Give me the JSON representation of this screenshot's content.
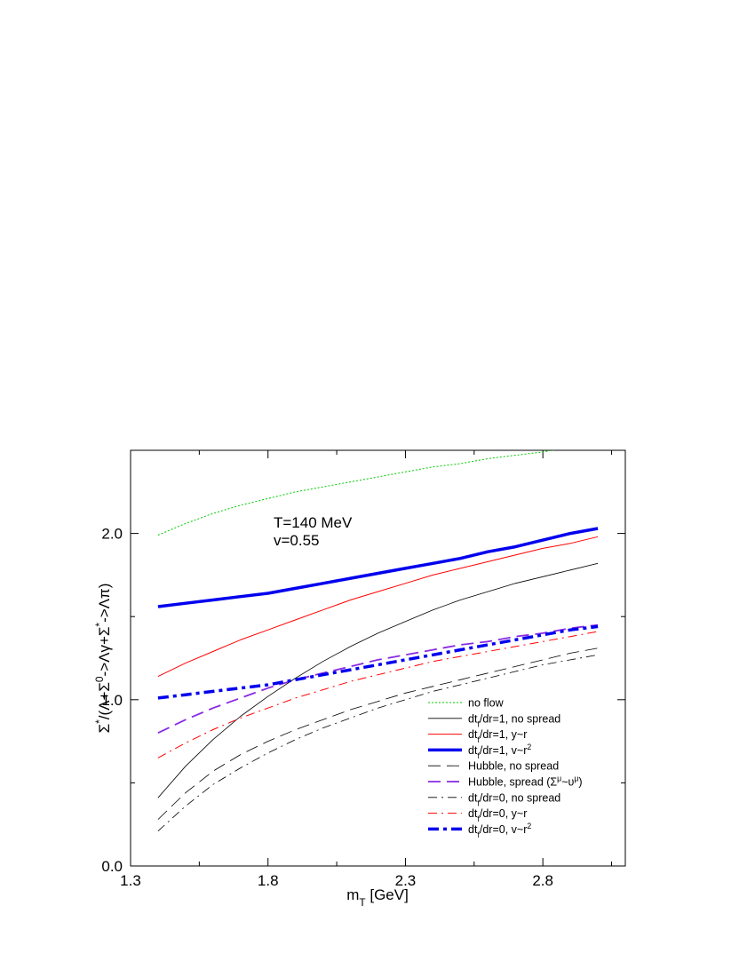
{
  "chart_data": {
    "type": "line",
    "xlabel": "m_T [GeV]",
    "ylabel": "Σ*/(Λ+Σ⁰->Λγ+Σ*->Λπ)",
    "xlim": [
      1.3,
      3.1
    ],
    "ylim": [
      0.0,
      2.5
    ],
    "x_ticks": [
      "1.3",
      "1.8",
      "2.3",
      "2.8"
    ],
    "y_ticks": [
      "0.0",
      "1.0",
      "2.0"
    ],
    "grid": false,
    "legend_position": "bottom-right",
    "annotations": [
      "T=140 MeV",
      "v=0.55"
    ],
    "x": [
      1.4,
      1.5,
      1.6,
      1.7,
      1.8,
      1.9,
      2.0,
      2.1,
      2.2,
      2.3,
      2.4,
      2.5,
      2.6,
      2.7,
      2.8,
      2.9,
      3.0
    ],
    "series": [
      {
        "name": "no flow",
        "color": "#00cc00",
        "style": "dotted",
        "width": 1,
        "values": [
          1.99,
          2.06,
          2.12,
          2.17,
          2.21,
          2.25,
          2.28,
          2.31,
          2.34,
          2.37,
          2.4,
          2.42,
          2.45,
          2.47,
          2.49,
          2.52,
          2.54
        ]
      },
      {
        "name": "dt_f/dr=1, no spread",
        "color": "#000000",
        "style": "solid",
        "width": 0.8,
        "values": [
          0.41,
          0.6,
          0.76,
          0.9,
          1.02,
          1.13,
          1.23,
          1.32,
          1.4,
          1.47,
          1.54,
          1.6,
          1.65,
          1.7,
          1.74,
          1.78,
          1.82
        ]
      },
      {
        "name": "dt_f/dr=1, y~r",
        "color": "#ff0000",
        "style": "solid",
        "width": 1,
        "values": [
          1.14,
          1.22,
          1.29,
          1.36,
          1.42,
          1.48,
          1.54,
          1.6,
          1.65,
          1.7,
          1.75,
          1.79,
          1.83,
          1.87,
          1.91,
          1.94,
          1.98
        ]
      },
      {
        "name": "dt_f/dr=1, v~r²",
        "color": "#0000ee",
        "style": "solid",
        "width": 3.5,
        "values": [
          1.56,
          1.58,
          1.6,
          1.62,
          1.64,
          1.67,
          1.7,
          1.73,
          1.76,
          1.79,
          1.82,
          1.85,
          1.89,
          1.92,
          1.96,
          2.0,
          2.03
        ]
      },
      {
        "name": "Hubble, no spread",
        "color": "#000000",
        "style": "dash-long",
        "width": 0.8,
        "values": [
          0.28,
          0.44,
          0.57,
          0.67,
          0.75,
          0.82,
          0.88,
          0.94,
          0.99,
          1.04,
          1.08,
          1.12,
          1.16,
          1.2,
          1.24,
          1.28,
          1.31
        ]
      },
      {
        "name": "Hubble, spread (Σ^μ~υ^μ)",
        "color": "#8a2be2",
        "style": "dash-long",
        "width": 1.8,
        "values": [
          0.8,
          0.88,
          0.95,
          1.01,
          1.07,
          1.12,
          1.16,
          1.2,
          1.24,
          1.27,
          1.3,
          1.33,
          1.35,
          1.38,
          1.4,
          1.43,
          1.45
        ]
      },
      {
        "name": "dt_f/dr=0, no spread",
        "color": "#000000",
        "style": "dash-dot",
        "width": 0.8,
        "values": [
          0.21,
          0.36,
          0.49,
          0.59,
          0.68,
          0.76,
          0.83,
          0.89,
          0.95,
          1.0,
          1.05,
          1.09,
          1.13,
          1.17,
          1.21,
          1.24,
          1.27
        ]
      },
      {
        "name": "dt_f/dr=0, y~r",
        "color": "#ff0000",
        "style": "dash-dot",
        "width": 1,
        "values": [
          0.65,
          0.74,
          0.82,
          0.89,
          0.95,
          1.01,
          1.06,
          1.11,
          1.15,
          1.19,
          1.23,
          1.26,
          1.29,
          1.32,
          1.35,
          1.38,
          1.41
        ]
      },
      {
        "name": "dt_f/dr=0, v~r²",
        "color": "#0000ee",
        "style": "dash-dot",
        "width": 3.5,
        "values": [
          1.01,
          1.03,
          1.05,
          1.07,
          1.09,
          1.12,
          1.15,
          1.18,
          1.21,
          1.24,
          1.27,
          1.3,
          1.33,
          1.36,
          1.39,
          1.42,
          1.44
        ]
      }
    ]
  }
}
